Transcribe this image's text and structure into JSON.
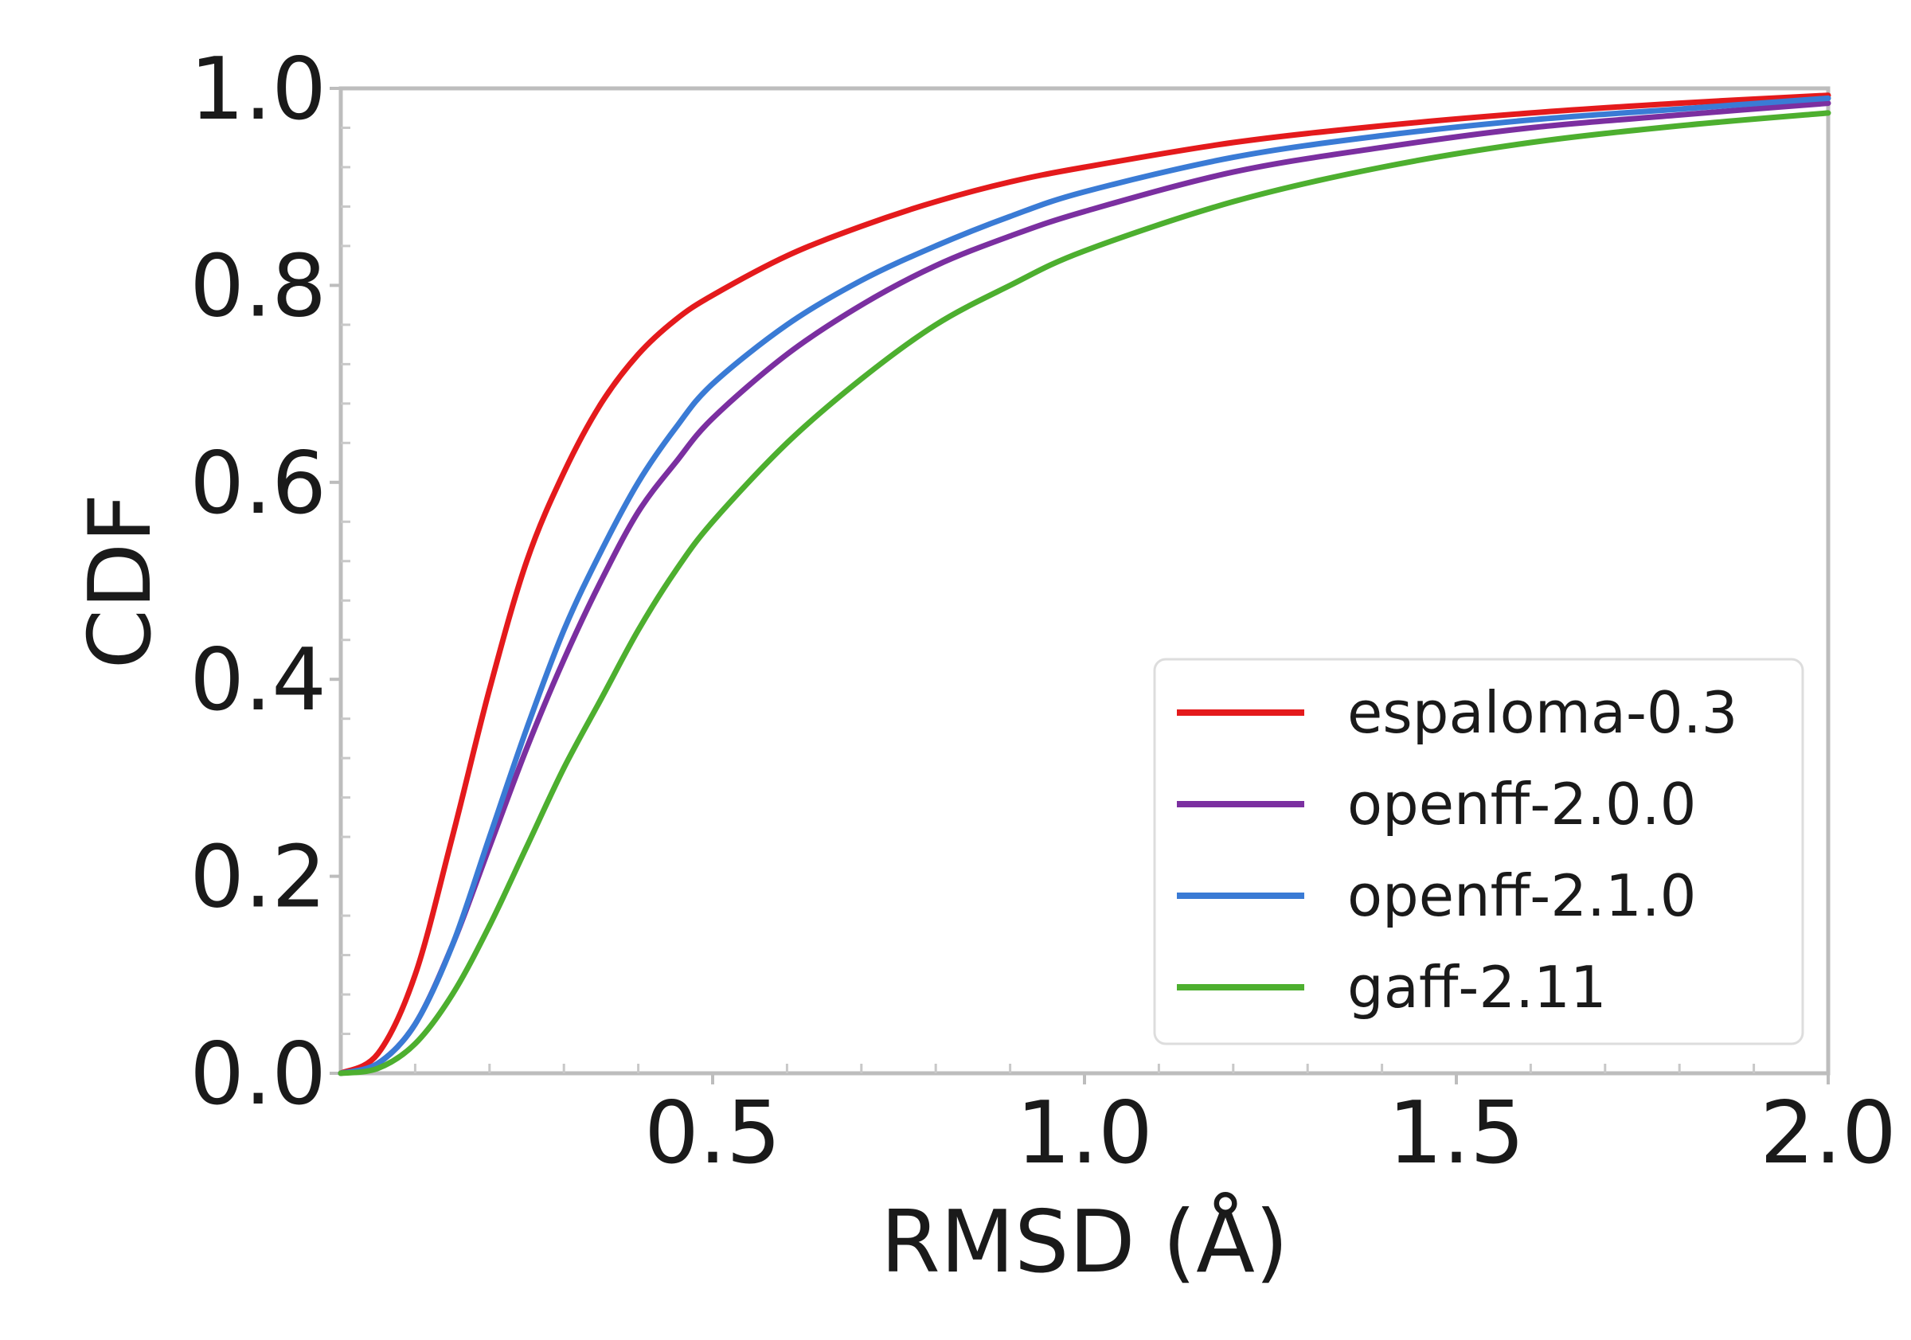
{
  "chart_data": {
    "type": "line",
    "title": "",
    "xlabel": "RMSD (Å)",
    "ylabel": "CDF",
    "xlim": [
      0.0,
      2.0
    ],
    "ylim": [
      0.0,
      1.0
    ],
    "xticks": [
      0.5,
      1.0,
      1.5,
      2.0
    ],
    "xtick_labels": [
      "0.5",
      "1.0",
      "1.5",
      "2.0"
    ],
    "yticks": [
      0.0,
      0.2,
      0.4,
      0.6,
      0.8,
      1.0
    ],
    "ytick_labels": [
      "0.0",
      "0.2",
      "0.4",
      "0.6",
      "0.8",
      "1.0"
    ],
    "grid": false,
    "legend_position": "lower-right",
    "series": [
      {
        "name": "espaloma-0.3",
        "color": "#e41a1c",
        "x": [
          0.0,
          0.05,
          0.1,
          0.15,
          0.2,
          0.25,
          0.3,
          0.35,
          0.4,
          0.45,
          0.5,
          0.6,
          0.7,
          0.8,
          0.9,
          1.0,
          1.2,
          1.4,
          1.6,
          1.8,
          2.0
        ],
        "y": [
          0.0,
          0.02,
          0.1,
          0.24,
          0.39,
          0.52,
          0.61,
          0.68,
          0.73,
          0.765,
          0.79,
          0.83,
          0.86,
          0.885,
          0.905,
          0.92,
          0.945,
          0.962,
          0.975,
          0.985,
          0.993
        ]
      },
      {
        "name": "openff-2.0.0",
        "color": "#7b2fa0",
        "x": [
          0.0,
          0.05,
          0.1,
          0.15,
          0.2,
          0.25,
          0.3,
          0.35,
          0.4,
          0.45,
          0.5,
          0.6,
          0.7,
          0.8,
          0.9,
          1.0,
          1.2,
          1.4,
          1.6,
          1.8,
          2.0
        ],
        "y": [
          0.0,
          0.01,
          0.05,
          0.13,
          0.23,
          0.33,
          0.42,
          0.5,
          0.57,
          0.62,
          0.665,
          0.73,
          0.78,
          0.82,
          0.85,
          0.875,
          0.915,
          0.94,
          0.96,
          0.973,
          0.985
        ]
      },
      {
        "name": "openff-2.1.0",
        "color": "#3a7bd5",
        "x": [
          0.0,
          0.05,
          0.1,
          0.15,
          0.2,
          0.25,
          0.3,
          0.35,
          0.4,
          0.45,
          0.5,
          0.6,
          0.7,
          0.8,
          0.9,
          1.0,
          1.2,
          1.4,
          1.6,
          1.8,
          2.0
        ],
        "y": [
          0.0,
          0.01,
          0.05,
          0.13,
          0.24,
          0.35,
          0.45,
          0.53,
          0.6,
          0.655,
          0.7,
          0.76,
          0.805,
          0.84,
          0.87,
          0.895,
          0.93,
          0.952,
          0.968,
          0.979,
          0.99
        ]
      },
      {
        "name": "gaff-2.11",
        "color": "#4daf2f",
        "x": [
          0.0,
          0.05,
          0.1,
          0.15,
          0.2,
          0.25,
          0.3,
          0.35,
          0.4,
          0.45,
          0.5,
          0.6,
          0.7,
          0.8,
          0.9,
          1.0,
          1.2,
          1.4,
          1.6,
          1.8,
          2.0
        ],
        "y": [
          0.0,
          0.005,
          0.03,
          0.08,
          0.15,
          0.23,
          0.31,
          0.38,
          0.45,
          0.51,
          0.56,
          0.64,
          0.705,
          0.76,
          0.8,
          0.835,
          0.885,
          0.92,
          0.945,
          0.962,
          0.975
        ]
      }
    ]
  }
}
